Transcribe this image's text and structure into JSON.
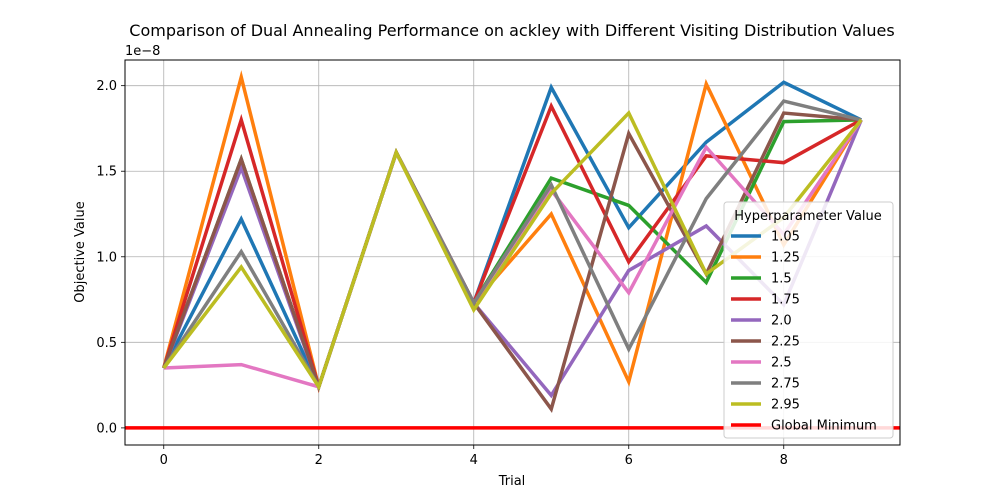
{
  "chart_data": {
    "type": "line",
    "title": "Comparison of Dual Annealing Performance on ackley with Different Visiting Distribution Values",
    "xlabel": "Trial",
    "ylabel": "Objective Value",
    "y_scale_label": "1e−8",
    "xlim": [
      -0.5,
      9.5
    ],
    "ylim": [
      -0.1,
      2.15
    ],
    "xticks": [
      0,
      2,
      4,
      6,
      8
    ],
    "xtick_labels": [
      "0",
      "2",
      "4",
      "6",
      "8"
    ],
    "yticks": [
      0.0,
      0.5,
      1.0,
      1.5,
      2.0
    ],
    "ytick_labels": [
      "0.0",
      "0.5",
      "1.0",
      "1.5",
      "2.0"
    ],
    "grid": true,
    "legend_title": "Hyperparameter Value",
    "legend_position": "lower right",
    "x": [
      0,
      1,
      2,
      3,
      4,
      5,
      6,
      7,
      8,
      9
    ],
    "series": [
      {
        "name": "1.05",
        "color": "#1f77b4",
        "values": [
          0.35,
          1.22,
          0.24,
          1.61,
          0.73,
          1.99,
          1.17,
          1.67,
          2.02,
          1.8
        ]
      },
      {
        "name": "1.25",
        "color": "#ff7f0e",
        "values": [
          0.35,
          2.05,
          0.24,
          1.61,
          0.73,
          1.25,
          0.27,
          2.01,
          1.07,
          1.8
        ]
      },
      {
        "name": "1.5",
        "color": "#2ca02c",
        "values": [
          0.35,
          1.57,
          0.24,
          1.61,
          0.73,
          1.46,
          1.3,
          0.85,
          1.79,
          1.8
        ]
      },
      {
        "name": "1.75",
        "color": "#d62728",
        "values": [
          0.35,
          1.8,
          0.24,
          1.61,
          0.73,
          1.88,
          0.97,
          1.59,
          1.55,
          1.8
        ]
      },
      {
        "name": "2.0",
        "color": "#9467bd",
        "values": [
          0.35,
          1.52,
          0.24,
          1.61,
          0.73,
          0.19,
          0.92,
          1.18,
          0.72,
          1.8
        ]
      },
      {
        "name": "2.25",
        "color": "#8c564b",
        "values": [
          0.35,
          1.57,
          0.24,
          1.61,
          0.73,
          0.11,
          1.72,
          0.9,
          1.84,
          1.8
        ]
      },
      {
        "name": "2.5",
        "color": "#e377c2",
        "values": [
          0.35,
          0.37,
          0.24,
          1.61,
          0.73,
          1.39,
          0.79,
          1.64,
          1.13,
          1.8
        ]
      },
      {
        "name": "2.75",
        "color": "#7f7f7f",
        "values": [
          0.35,
          1.03,
          0.24,
          1.61,
          0.73,
          1.42,
          0.46,
          1.34,
          1.91,
          1.8
        ]
      },
      {
        "name": "2.95",
        "color": "#bcbd22",
        "values": [
          0.35,
          0.94,
          0.24,
          1.61,
          0.69,
          1.37,
          1.84,
          0.9,
          1.23,
          1.8
        ]
      }
    ],
    "reference_line": {
      "name": "Global Minimum",
      "color": "#ff0000",
      "value": 0.0
    }
  }
}
